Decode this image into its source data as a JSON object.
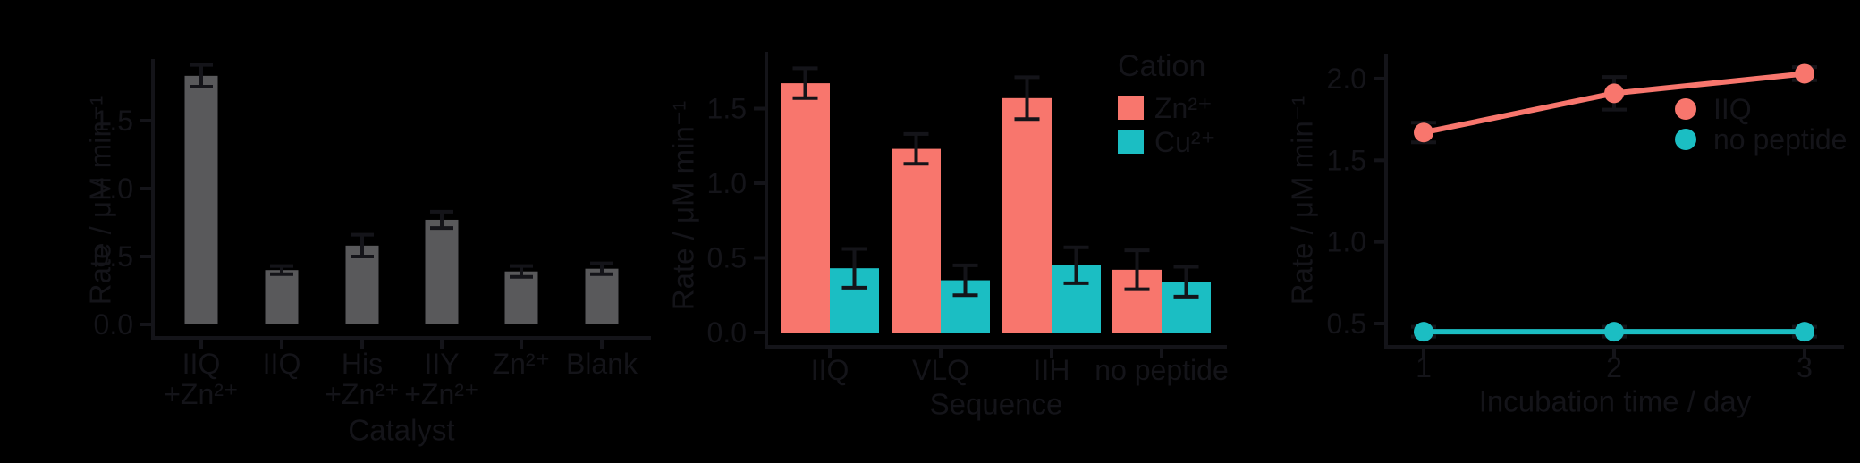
{
  "figure": {
    "background": "#000000",
    "ink": "#141419",
    "bar_gray": "#59595B",
    "zn_red": "#F8766D",
    "cu_teal": "#1BBEC3"
  },
  "chart_data": [
    {
      "id": "catalyst-rate-bars",
      "type": "bar",
      "title": "",
      "xlabel": "Catalyst",
      "ylabel": "Rate / μM min⁻¹",
      "categories": [
        "IIQ\n+Zn²⁺",
        "IIQ",
        "His\n+Zn²⁺",
        "IIY\n+Zn²⁺",
        "Zn²⁺",
        "Blank"
      ],
      "values": [
        1.83,
        0.4,
        0.58,
        0.77,
        0.39,
        0.41
      ],
      "errors": [
        0.08,
        0.03,
        0.08,
        0.06,
        0.04,
        0.04
      ],
      "bar_color": "#59595B",
      "y_ticks": [
        0.0,
        0.5,
        1.0,
        1.5
      ],
      "ylim": [
        0,
        1.95
      ],
      "grid": false,
      "legend": null
    },
    {
      "id": "sequence-rate-grouped-bars",
      "type": "bar",
      "title": "",
      "xlabel": "Sequence",
      "ylabel": "Rate / μM min⁻¹",
      "categories": [
        "IIQ",
        "VLQ",
        "IIH",
        "no peptide"
      ],
      "series": [
        {
          "name": "Zn²⁺",
          "color": "#F8766D",
          "values": [
            1.67,
            1.23,
            1.57,
            0.42
          ],
          "errors": [
            0.1,
            0.1,
            0.14,
            0.13
          ]
        },
        {
          "name": "Cu²⁺",
          "color": "#1BBEC3",
          "values": [
            0.43,
            0.35,
            0.45,
            0.34
          ],
          "errors": [
            0.13,
            0.1,
            0.12,
            0.1
          ]
        }
      ],
      "y_ticks": [
        0.0,
        0.5,
        1.0,
        1.5
      ],
      "ylim": [
        0,
        1.88
      ],
      "grid": false,
      "legend": {
        "title": "Cation",
        "position": "right-inside-top"
      }
    },
    {
      "id": "incubation-time-lines",
      "type": "line",
      "title": "",
      "xlabel": "Incubation time / day",
      "ylabel": "Rate / μM min⁻¹",
      "x": [
        1,
        2,
        3
      ],
      "x_tick_labels": [
        "1",
        "2",
        "3"
      ],
      "series": [
        {
          "name": "IIQ",
          "color": "#F8766D",
          "values": [
            1.67,
            1.91,
            2.03
          ],
          "errors": [
            0.06,
            0.1,
            0.04
          ]
        },
        {
          "name": "no peptide",
          "color": "#1BBEC3",
          "values": [
            0.45,
            0.45,
            0.45
          ],
          "errors": [
            0.03,
            0.03,
            0.03
          ]
        }
      ],
      "y_ticks": [
        0.5,
        1.0,
        1.5,
        2.0
      ],
      "ylim": [
        0.42,
        2.15
      ],
      "grid": false,
      "legend": {
        "title": "",
        "position": "inside-right"
      }
    }
  ]
}
